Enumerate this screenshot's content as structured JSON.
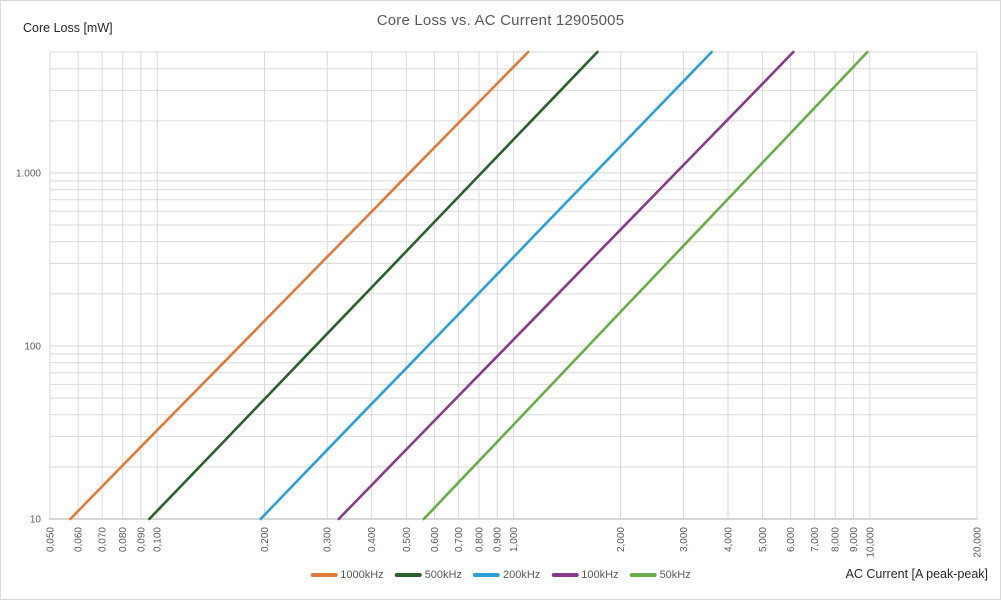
{
  "title": "Core Loss vs. AC Current 12905005",
  "axes": {
    "y": {
      "title": "Core Loss [mW]"
    },
    "x": {
      "title": "AC Current [A peak-peak]"
    }
  },
  "colors": {
    "background": "#FFFFFF",
    "frame_border": "#D9D9D9",
    "gridline": "#D9D9D9",
    "axis_line": "#BFBFBF",
    "title_text": "#595959",
    "tick_text": "#595959",
    "axis_title_text": "#262626"
  },
  "chart_data": {
    "type": "line",
    "title": "Core Loss vs. AC Current 12905005",
    "xlabel": "AC Current [A peak-peak]",
    "ylabel": "Core Loss [mW]",
    "x_scale": "log",
    "y_scale": "log",
    "xlim": [
      0.05,
      20
    ],
    "ylim": [
      10,
      5000
    ],
    "grid": true,
    "legend_position": "bottom",
    "x_ticks": [
      {
        "value": 0.05,
        "label": "0,050"
      },
      {
        "value": 0.06,
        "label": "0,060"
      },
      {
        "value": 0.07,
        "label": "0,070"
      },
      {
        "value": 0.08,
        "label": "0,080"
      },
      {
        "value": 0.09,
        "label": "0,090"
      },
      {
        "value": 0.1,
        "label": "0,100"
      },
      {
        "value": 0.2,
        "label": "0,200"
      },
      {
        "value": 0.3,
        "label": "0,300"
      },
      {
        "value": 0.4,
        "label": "0,400"
      },
      {
        "value": 0.5,
        "label": "0,500"
      },
      {
        "value": 0.6,
        "label": "0,600"
      },
      {
        "value": 0.7,
        "label": "0,700"
      },
      {
        "value": 0.8,
        "label": "0,800"
      },
      {
        "value": 0.9,
        "label": "0,900"
      },
      {
        "value": 1,
        "label": "1,000"
      },
      {
        "value": 2,
        "label": "2,000"
      },
      {
        "value": 3,
        "label": "3,000"
      },
      {
        "value": 4,
        "label": "4,000"
      },
      {
        "value": 5,
        "label": "5,000"
      },
      {
        "value": 6,
        "label": "6,000"
      },
      {
        "value": 7,
        "label": "7,000"
      },
      {
        "value": 8,
        "label": "8,000"
      },
      {
        "value": 9,
        "label": "9,000"
      },
      {
        "value": 10,
        "label": "10,000"
      },
      {
        "value": 20,
        "label": "20,000"
      }
    ],
    "y_ticks": [
      {
        "value": 10,
        "label": "10"
      },
      {
        "value": 100,
        "label": "100"
      },
      {
        "value": 1000,
        "label": "1.000"
      }
    ],
    "y_minor_gridlines": [
      20,
      30,
      40,
      50,
      60,
      70,
      80,
      90,
      200,
      300,
      400,
      500,
      600,
      700,
      800,
      900,
      2000,
      3000,
      4000,
      5000
    ],
    "series": [
      {
        "name": "1000kHz",
        "color": "#DE7B3C",
        "power_fit": {
          "k": 4100,
          "n": 2.1
        },
        "points": [
          [
            0.057,
            10
          ],
          [
            0.08,
            20.4
          ],
          [
            0.1,
            32.6
          ],
          [
            0.15,
            76.3
          ],
          [
            0.2,
            139.6
          ],
          [
            0.3,
            327
          ],
          [
            0.4,
            598
          ],
          [
            0.5,
            957
          ],
          [
            0.7,
            1938
          ],
          [
            0.9,
            3286
          ],
          [
            1.1,
            5000
          ]
        ]
      },
      {
        "name": "500kHz",
        "color": "#2C5F2E",
        "power_fit": {
          "k": 1560,
          "n": 2.15
        },
        "points": [
          [
            0.095,
            10
          ],
          [
            0.12,
            16.5
          ],
          [
            0.15,
            26.6
          ],
          [
            0.2,
            49.3
          ],
          [
            0.3,
            117.8
          ],
          [
            0.4,
            218
          ],
          [
            0.6,
            521
          ],
          [
            0.8,
            967
          ],
          [
            1.0,
            1560
          ],
          [
            1.3,
            2739
          ],
          [
            1.72,
            5000
          ]
        ]
      },
      {
        "name": "200kHz",
        "color": "#2D9FD6",
        "power_fit": {
          "k": 326,
          "n": 2.13
        },
        "points": [
          [
            0.195,
            10
          ],
          [
            0.25,
            17
          ],
          [
            0.3,
            25.1
          ],
          [
            0.4,
            46.3
          ],
          [
            0.5,
            74.4
          ],
          [
            0.7,
            152
          ],
          [
            0.9,
            260
          ],
          [
            1.2,
            481
          ],
          [
            1.6,
            888
          ],
          [
            2.2,
            1750
          ],
          [
            2.9,
            3152
          ],
          [
            3.6,
            5000
          ]
        ]
      },
      {
        "name": "100kHz",
        "color": "#883C88",
        "power_fit": {
          "k": 109,
          "n": 2.11
        },
        "points": [
          [
            0.323,
            10
          ],
          [
            0.4,
            15.7
          ],
          [
            0.5,
            25.2
          ],
          [
            0.7,
            51.3
          ],
          [
            0.9,
            87.2
          ],
          [
            1.2,
            160
          ],
          [
            1.6,
            294
          ],
          [
            2.2,
            577
          ],
          [
            3.0,
            1112
          ],
          [
            4.0,
            2042
          ],
          [
            5.0,
            3273
          ],
          [
            6.1,
            5000
          ]
        ]
      },
      {
        "name": "50kHz",
        "color": "#69AD4B",
        "power_fit": {
          "k": 35,
          "n": 2.17
        },
        "points": [
          [
            0.56,
            10
          ],
          [
            0.7,
            16.2
          ],
          [
            0.9,
            27.9
          ],
          [
            1.2,
            52.1
          ],
          [
            1.6,
            97.2
          ],
          [
            2.2,
            194
          ],
          [
            3.0,
            379
          ],
          [
            4.0,
            708
          ],
          [
            5.5,
            1411
          ],
          [
            7.0,
            2380
          ],
          [
            8.5,
            3626
          ],
          [
            9.85,
            5000
          ]
        ]
      }
    ]
  }
}
